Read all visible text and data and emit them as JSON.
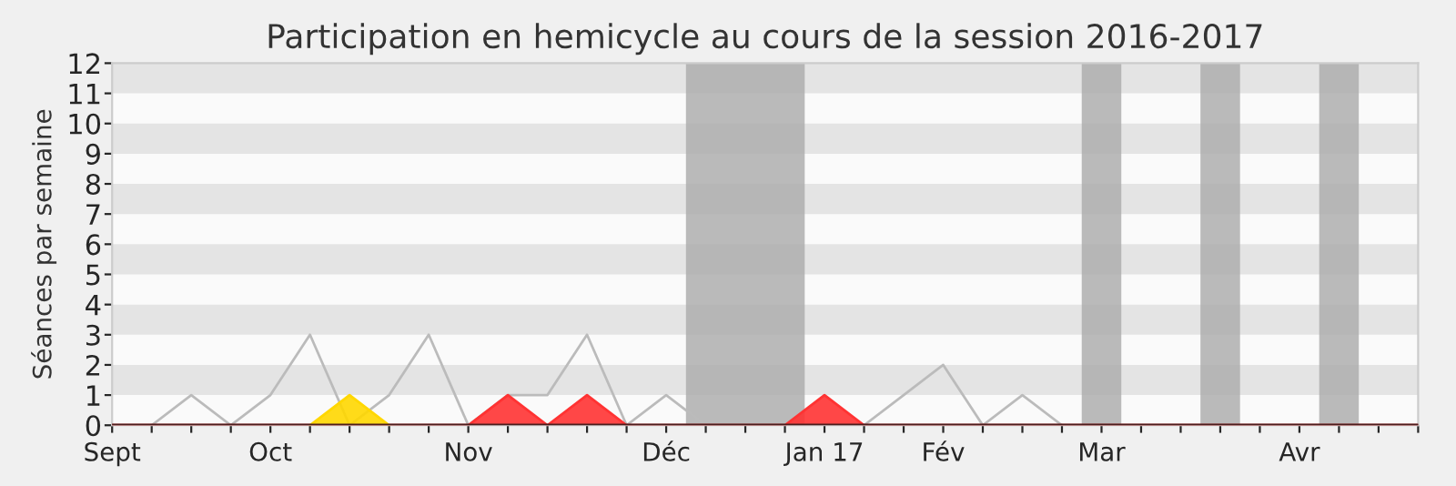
{
  "chart_data": {
    "type": "area",
    "title": "Participation en hemicycle au cours de la session 2016-2017",
    "ylabel": "Séances par semaine",
    "x": [
      "2016-09-07",
      "2016-09-14",
      "2016-09-21",
      "2016-09-28",
      "2016-10-05",
      "2016-10-12",
      "2016-10-19",
      "2016-10-26",
      "2016-11-02",
      "2016-11-09",
      "2016-11-16",
      "2016-11-23",
      "2016-11-30",
      "2016-12-07",
      "2016-12-14",
      "2016-12-21",
      "2016-12-28",
      "2017-01-04",
      "2017-01-11",
      "2017-01-18",
      "2017-01-25",
      "2017-02-01",
      "2017-02-08",
      "2017-02-15",
      "2017-02-22",
      "2017-03-01",
      "2017-03-08",
      "2017-03-15",
      "2017-03-22",
      "2017-03-29",
      "2017-04-05",
      "2017-04-12",
      "2017-04-19",
      "2017-04-26"
    ],
    "series": [
      {
        "type": "line",
        "color": "#bbbbbb",
        "values": [
          null,
          0,
          1,
          0,
          1,
          3,
          0,
          1,
          3,
          0,
          1,
          1,
          3,
          0,
          1,
          0,
          0,
          0,
          0,
          0,
          1,
          2,
          0,
          1,
          0,
          null,
          null,
          null,
          null,
          null,
          null,
          null,
          null,
          null
        ]
      },
      {
        "color": "#ff3333",
        "values": [
          0,
          0,
          0,
          0,
          0,
          0,
          0,
          0,
          0,
          0,
          1,
          0,
          1,
          0,
          0,
          0,
          0,
          0,
          1,
          0,
          0,
          0,
          0,
          0,
          0,
          0,
          0,
          0,
          0,
          0,
          0,
          0,
          0,
          0
        ]
      },
      {
        "color": "#ffd700",
        "values": [
          null,
          null,
          null,
          null,
          null,
          0,
          1,
          0,
          null,
          null,
          null,
          null,
          null,
          null,
          null,
          null,
          null,
          null,
          null,
          null,
          null,
          null,
          null,
          null,
          null,
          null,
          null,
          null,
          null,
          null,
          null,
          null,
          null,
          null
        ]
      }
    ],
    "xlim": [
      "2016-09-07",
      "2017-04-26"
    ],
    "xticks": [
      {
        "value": "2016-09-07",
        "label": "Sept"
      },
      {
        "value": "2016-09-14",
        "label": null
      },
      {
        "value": "2016-09-21",
        "label": null
      },
      {
        "value": "2016-09-28",
        "label": null
      },
      {
        "value": "2016-10-05",
        "label": "Oct"
      },
      {
        "value": "2016-10-12",
        "label": null
      },
      {
        "value": "2016-10-19",
        "label": null
      },
      {
        "value": "2016-10-26",
        "label": null
      },
      {
        "value": "2016-11-02",
        "label": null
      },
      {
        "value": "2016-11-09",
        "label": "Nov"
      },
      {
        "value": "2016-11-16",
        "label": null
      },
      {
        "value": "2016-11-23",
        "label": null
      },
      {
        "value": "2016-11-30",
        "label": null
      },
      {
        "value": "2016-12-07",
        "label": null
      },
      {
        "value": "2016-12-14",
        "label": "Déc"
      },
      {
        "value": "2016-12-21",
        "label": null
      },
      {
        "value": "2016-12-28",
        "label": null
      },
      {
        "value": "2017-01-04",
        "label": null
      },
      {
        "value": "2017-01-11",
        "label": "Jan 17"
      },
      {
        "value": "2017-01-18",
        "label": null
      },
      {
        "value": "2017-01-25",
        "label": null
      },
      {
        "value": "2017-02-01",
        "label": "Fév"
      },
      {
        "value": "2017-02-08",
        "label": null
      },
      {
        "value": "2017-02-15",
        "label": null
      },
      {
        "value": "2017-02-22",
        "label": null
      },
      {
        "value": "2017-03-01",
        "label": "Mar"
      },
      {
        "value": "2017-03-08",
        "label": null
      },
      {
        "value": "2017-03-15",
        "label": null
      },
      {
        "value": "2017-03-22",
        "label": null
      },
      {
        "value": "2017-03-29",
        "label": null
      },
      {
        "value": "2017-04-05",
        "label": "Avr"
      },
      {
        "value": "2017-04-12",
        "label": null
      },
      {
        "value": "2017-04-19",
        "label": null
      },
      {
        "value": "2017-04-26",
        "label": null
      }
    ],
    "ylim": [
      0,
      12
    ],
    "yticks": [
      0,
      1,
      2,
      3,
      4,
      5,
      6,
      7,
      8,
      9,
      10,
      11,
      12
    ],
    "bands": [
      {
        "axis": "x",
        "from": "2016-12-17T12:00",
        "to": "2017-01-07T12:00",
        "color": "#aaaaaa"
      },
      {
        "axis": "x",
        "from": "2017-02-25T12:00",
        "to": "2017-03-04T12:00",
        "color": "#aaaaaa"
      },
      {
        "axis": "x",
        "from": "2017-03-18T12:00",
        "to": "2017-03-25T12:00",
        "color": "#aaaaaa"
      },
      {
        "axis": "x",
        "from": "2017-04-08T12:00",
        "to": "2017-04-15T12:00",
        "color": "#aaaaaa"
      }
    ]
  }
}
